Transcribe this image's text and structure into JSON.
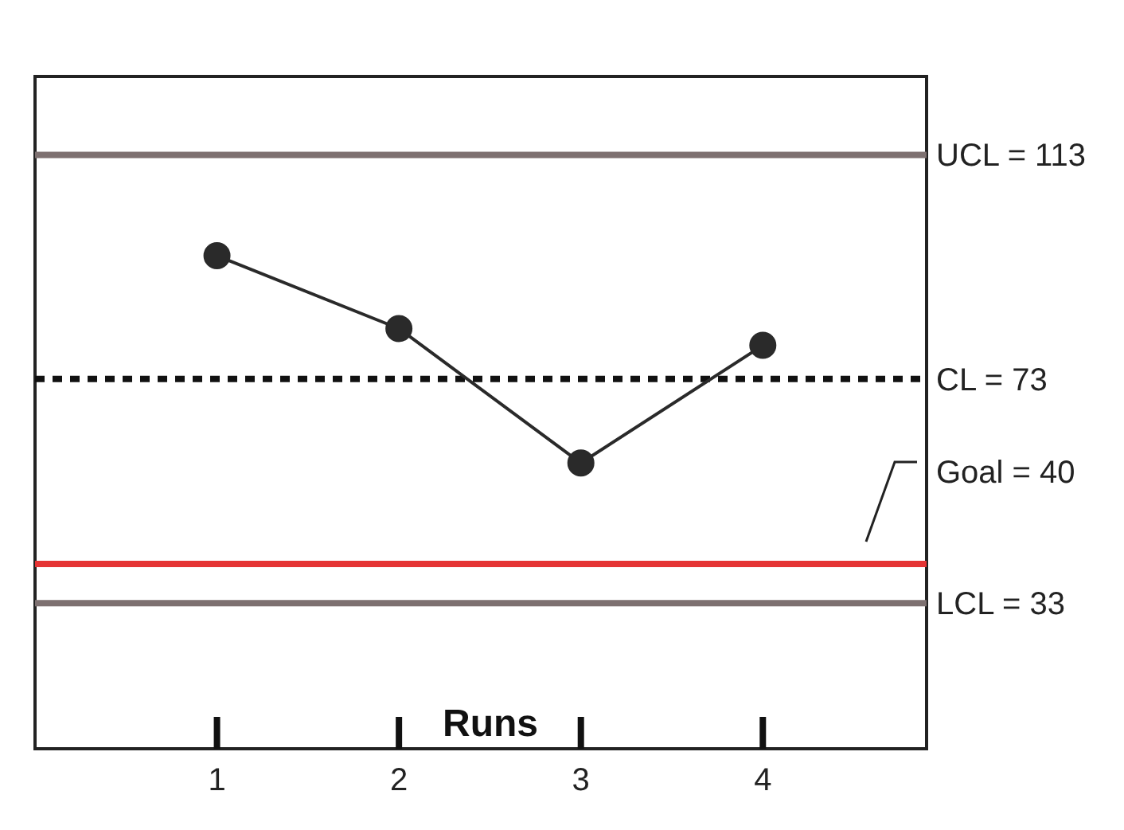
{
  "chart_data": {
    "type": "line",
    "xlabel": "Runs",
    "x": [
      1,
      2,
      3,
      4
    ],
    "series": [
      {
        "color": "#2a2a2a",
        "values": [
          95,
          82,
          58,
          79
        ]
      }
    ],
    "xlim": [
      0,
      4.9
    ],
    "xticks": [
      1,
      2,
      3,
      4
    ],
    "ylim": [
      7,
      127
    ],
    "tick_labels": "x",
    "marker": "circle",
    "line_style": "solid",
    "ref_lines": [
      {
        "axis": "y",
        "value": 113,
        "label": "UCL = 113",
        "color": "#7d7070",
        "line_style": "solid"
      },
      {
        "axis": "y",
        "value": 73,
        "label": "CL = 73",
        "color": "#111111",
        "line_style": "dashed"
      },
      {
        "axis": "y",
        "value": 40,
        "label": "Goal = 40",
        "color": "#e53434",
        "line_style": "solid"
      },
      {
        "axis": "y",
        "value": 33,
        "label": "LCL = 33",
        "color": "#7d7070",
        "line_style": "solid"
      }
    ]
  }
}
